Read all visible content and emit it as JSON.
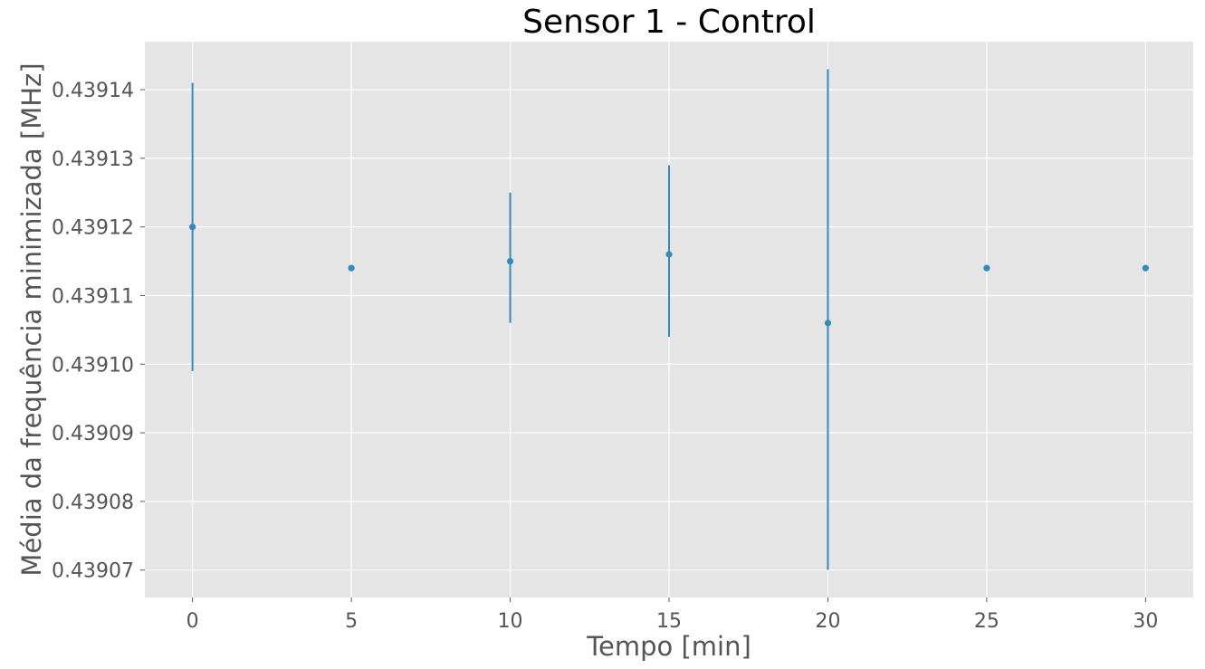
{
  "chart_data": {
    "type": "scatter",
    "title": "Sensor 1 - Control",
    "xlabel": "Tempo [min]",
    "ylabel": "Média da frequência minimizada [MHz]",
    "xlim": [
      -1.5,
      31.5
    ],
    "ylim": [
      0.439066,
      0.439147
    ],
    "xticks": [
      0,
      5,
      10,
      15,
      20,
      25,
      30
    ],
    "xtick_labels": [
      "0",
      "5",
      "10",
      "15",
      "20",
      "25",
      "30"
    ],
    "yticks": [
      0.43907,
      0.43908,
      0.43909,
      0.4391,
      0.43911,
      0.43912,
      0.43913,
      0.43914
    ],
    "ytick_labels": [
      "0.43907",
      "0.43908",
      "0.43909",
      "0.43910",
      "0.43911",
      "0.43912",
      "0.43913",
      "0.43914"
    ],
    "grid": true,
    "series": [
      {
        "x": [
          0,
          5,
          10,
          15,
          20,
          25,
          30
        ],
        "y": [
          0.43912,
          0.439114,
          0.439115,
          0.439116,
          0.439106,
          0.439114,
          0.439114
        ],
        "yerr_low": [
          0.439099,
          null,
          0.439106,
          0.439104,
          0.43907,
          null,
          null
        ],
        "yerr_high": [
          0.439141,
          null,
          0.439125,
          0.439129,
          0.439143,
          null,
          null
        ]
      }
    ],
    "colors": {
      "background": "#e5e5e5",
      "grid": "#ffffff",
      "series": "#348abd"
    }
  }
}
